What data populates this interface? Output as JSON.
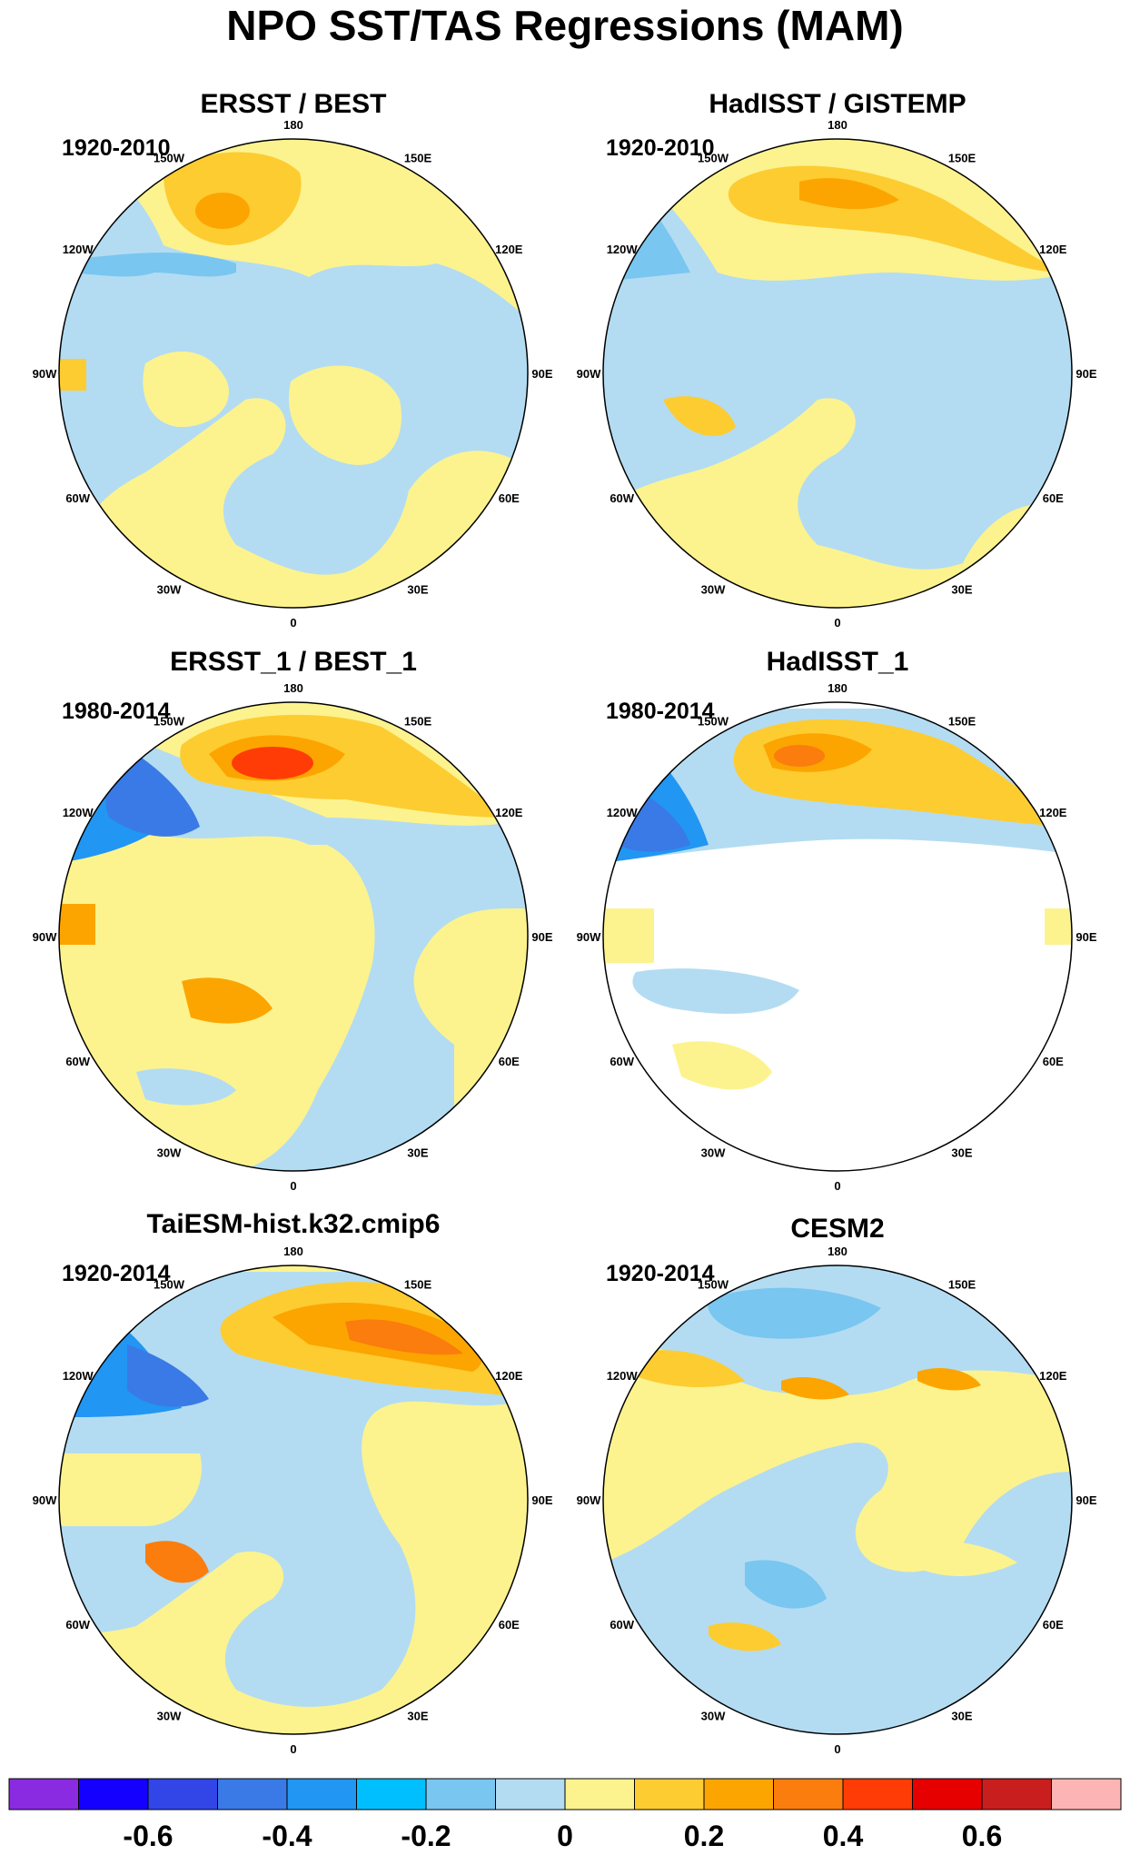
{
  "title": "NPO SST/TAS Regressions (MAM)",
  "panels": [
    {
      "title": "ERSST / BEST",
      "period": "1920-2010"
    },
    {
      "title": "HadISST / GISTEMP",
      "period": "1920-2010"
    },
    {
      "title": "ERSST_1 / BEST_1",
      "period": "1980-2014"
    },
    {
      "title": "HadISST_1",
      "period": "1980-2014"
    },
    {
      "title": "TaiESM-hist.k32.cmip6",
      "period": "1920-2014"
    },
    {
      "title": "CESM2",
      "period": "1920-2014"
    }
  ],
  "longitude_labels": [
    "180",
    "150E",
    "120E",
    "90E",
    "60E",
    "30E",
    "0",
    "30W",
    "60W",
    "90W",
    "120W",
    "150W"
  ],
  "colorbar": {
    "colors": [
      "#8a2be2",
      "#1400ff",
      "#3246e8",
      "#3a7ae6",
      "#2196f3",
      "#00bfff",
      "#79c6f0",
      "#b3dcf2",
      "#fcf38f",
      "#fdcc31",
      "#fca500",
      "#fb7d0e",
      "#ff3c06",
      "#e60000",
      "#c81e1e",
      "#fdb4b4"
    ],
    "labels": [
      "-0.6",
      "-0.4",
      "-0.2",
      "0",
      "0.2",
      "0.4",
      "0.6"
    ],
    "label_values": [
      -0.6,
      -0.4,
      -0.2,
      0,
      0.2,
      0.4,
      0.6
    ],
    "min": -0.8,
    "max": 0.8
  }
}
